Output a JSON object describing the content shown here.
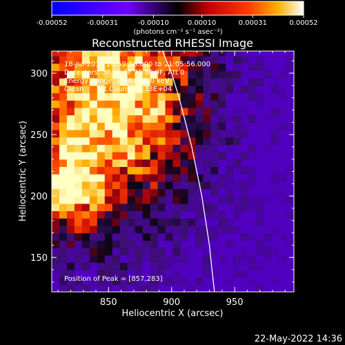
{
  "chart_data": {
    "type": "heatmap",
    "title": "Reconstructed RHESSI Image",
    "xlabel": "Heliocentric X (arcsec)",
    "ylabel": "Heliocentric Y (arcsec)",
    "xlim": [
      805,
      997
    ],
    "ylim": [
      122,
      318
    ],
    "x_ticks": [
      {
        "value": 850,
        "label": "850"
      },
      {
        "value": 900,
        "label": "900"
      },
      {
        "value": 950,
        "label": "950"
      }
    ],
    "y_ticks": [
      {
        "value": 150,
        "label": "150"
      },
      {
        "value": 200,
        "label": "200"
      },
      {
        "value": 250,
        "label": "250"
      },
      {
        "value": 300,
        "label": "300"
      }
    ],
    "colorbar": {
      "range": [
        -0.00052,
        0.00052
      ],
      "tick_values": [
        -0.00052,
        -0.00031,
        -0.0001,
        0.0001,
        0.00031,
        0.00052
      ],
      "tick_labels": [
        "-0.00052",
        "-0.00031",
        "-0.00010",
        "0.00010",
        "0.00031",
        "0.00052"
      ],
      "unit_label": "(photons cm⁻² s⁻¹ asec⁻²)"
    },
    "annotations": [
      "18-Jul-2015 20:59:56.000 to 21:05:56.000",
      "Detectors: 3F 5F 6F 7F 8F 9F, Att 0",
      "Energy Range: 25.0 - 50.0 keV",
      "Clean      Tot Counts: 1.33E+04"
    ],
    "peak": {
      "x": 857,
      "y": 283,
      "label": "Position of Peak = [857,283]"
    },
    "limb_curve": [
      [
        892,
        320
      ],
      [
        900,
        300
      ],
      [
        906,
        280
      ],
      [
        911,
        260
      ],
      [
        916,
        240
      ],
      [
        920,
        220
      ],
      [
        924,
        200
      ],
      [
        927,
        180
      ],
      [
        930,
        160
      ],
      [
        932,
        140
      ],
      [
        934,
        122
      ]
    ],
    "grid": false,
    "colors": {
      "high": "#ffffff",
      "mid": "#ff3a00",
      "zero": "#000000",
      "low": "#0000ff"
    }
  },
  "footer": {
    "date": "22-May-2022 14:36"
  }
}
